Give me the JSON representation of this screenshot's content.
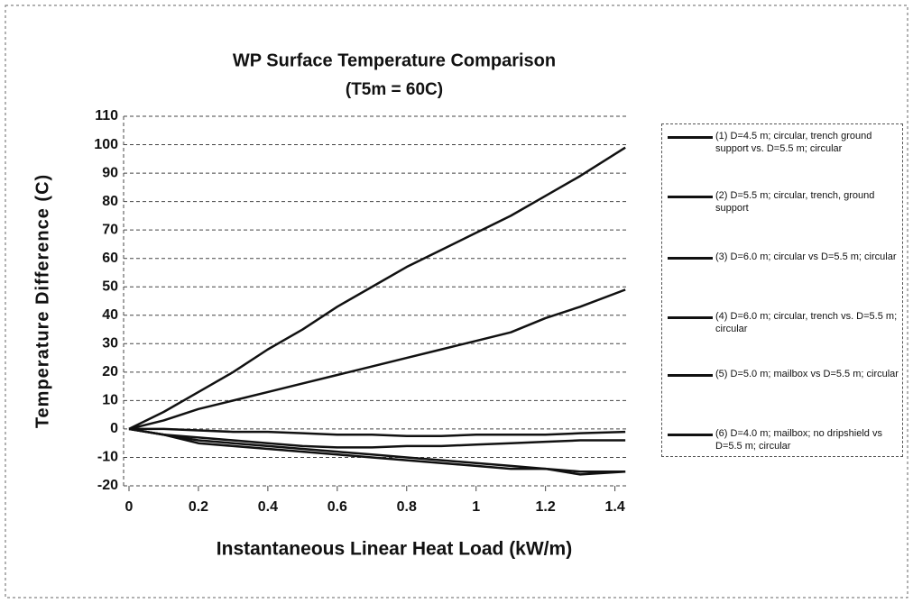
{
  "chart_data": {
    "type": "line",
    "title": "WP Surface Temperature Comparison",
    "subtitle": "(T5m = 60C)",
    "x_label": "Instantaneous Linear Heat Load (kW/m)",
    "y_label": "Temperature Difference (C)",
    "x": [
      0,
      0.1,
      0.2,
      0.3,
      0.4,
      0.5,
      0.6,
      0.7,
      0.8,
      0.9,
      1.0,
      1.1,
      1.2,
      1.3,
      1.43
    ],
    "series": [
      {
        "name": "(1) D=4.5 m; circular, trench ground support vs. D=5.5 m; circular",
        "color": "#111111",
        "values": [
          0,
          6,
          13,
          20,
          28,
          35,
          43,
          50,
          57,
          63,
          69,
          75,
          82,
          89,
          99
        ]
      },
      {
        "name": "(2) D=5.5 m; circular, trench, ground support",
        "color": "#111111",
        "values": [
          0,
          3,
          7,
          10,
          13,
          16,
          19,
          22,
          25,
          28,
          31,
          34,
          39,
          43,
          49
        ]
      },
      {
        "name": "(3) D=6.0 m; circular vs D=5.5 m; circular",
        "color": "#111111",
        "values": [
          0,
          0,
          -0.5,
          -1,
          -1,
          -1.5,
          -2,
          -2,
          -2.5,
          -2.5,
          -2,
          -2,
          -2,
          -1.5,
          -1
        ]
      },
      {
        "name": "(4) D=6.0 m; circular, trench vs. D=5.5 m; circular",
        "color": "#111111",
        "values": [
          0,
          -2,
          -3,
          -4,
          -5,
          -6,
          -6.5,
          -6.5,
          -6,
          -6,
          -5.5,
          -5,
          -4.5,
          -4,
          -4
        ]
      },
      {
        "name": "(5) D=5.0 m; mailbox vs D=5.5 m; circular",
        "color": "#111111",
        "values": [
          0,
          -2,
          -4,
          -5,
          -6,
          -7,
          -8,
          -9,
          -10,
          -11,
          -12,
          -13,
          -14,
          -15,
          -15
        ]
      },
      {
        "name": "(6) D=4.0 m; mailbox; no dripshield vs D=5.5 m; circular",
        "color": "#111111",
        "values": [
          0,
          -2,
          -5,
          -6,
          -7,
          -8,
          -9,
          -10,
          -11,
          -12,
          -13,
          -14,
          -14,
          -16,
          -15
        ]
      }
    ],
    "xlim": [
      0,
      1.44
    ],
    "ylim": [
      -20,
      110
    ],
    "xticks": [
      0,
      0.2,
      0.4,
      0.6,
      0.8,
      1,
      1.2,
      1.4
    ],
    "yticks": [
      -20,
      -10,
      0,
      10,
      20,
      30,
      40,
      50,
      60,
      70,
      80,
      90,
      100,
      110
    ],
    "grid": true,
    "legend": "right"
  }
}
